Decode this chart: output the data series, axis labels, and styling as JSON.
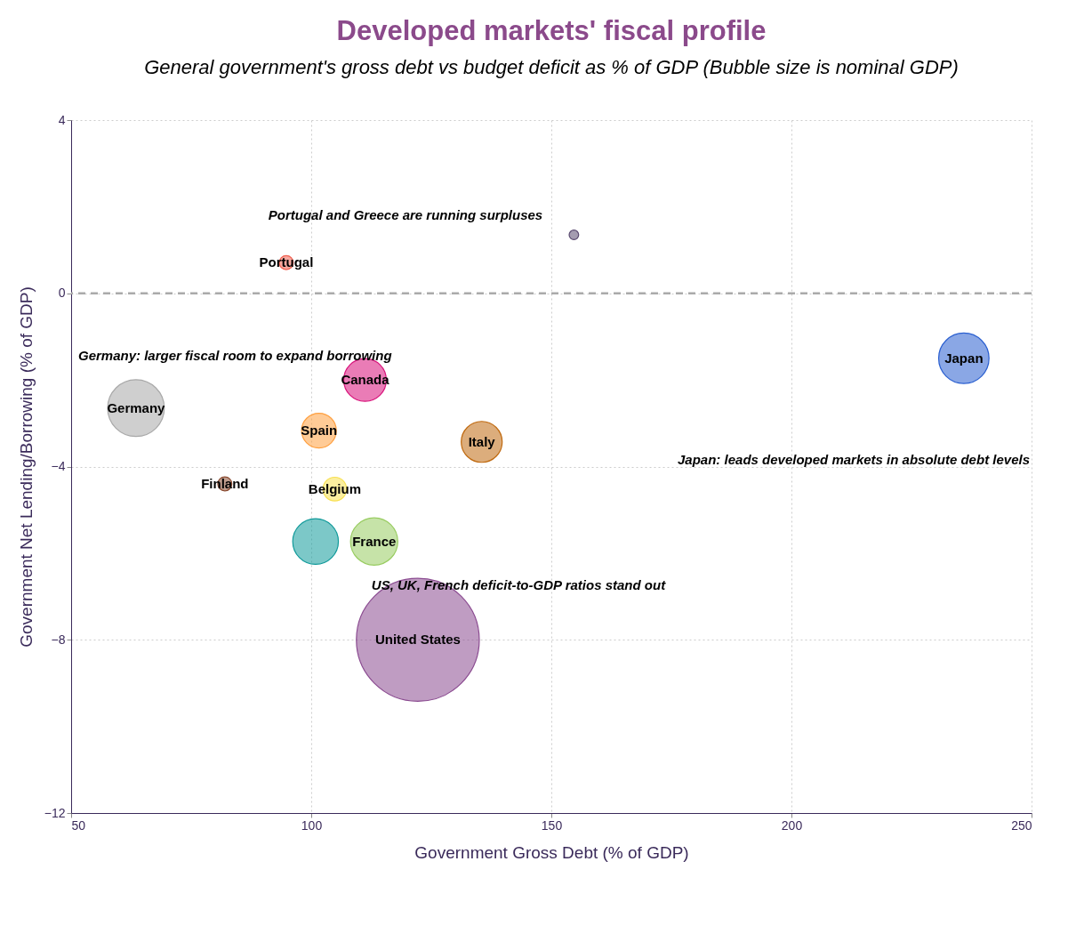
{
  "chart_data": {
    "type": "bubble",
    "title": "Developed markets' fiscal profile",
    "subtitle": "General government's gross debt vs budget deficit as % of GDP (Bubble size is nominal GDP)",
    "xlabel": "Government Gross Debt (% of GDP)",
    "ylabel": "Government Net Lending/Borrowing (% of GDP)",
    "xlim": [
      50,
      250
    ],
    "xticks": [
      50,
      100,
      150,
      200,
      250
    ],
    "ylim": [
      -12,
      4
    ],
    "yticks": [
      -12,
      -8,
      -4,
      0,
      4
    ],
    "grid": true,
    "legend": false,
    "series": [
      {
        "x": [
          154.7
        ],
        "values": [
          1.35
        ],
        "sizes": [
          0.006
        ],
        "color": "#5a4a70"
      },
      {
        "name": "Portugal",
        "x": [
          94.8
        ],
        "values": [
          0.71
        ],
        "sizes": [
          0.013
        ],
        "color": "#f06050"
      },
      {
        "name": "Japan",
        "x": [
          235.9
        ],
        "values": [
          -1.5
        ],
        "sizes": [
          0.168
        ],
        "color": "#2a5fd0"
      },
      {
        "name": "Canada",
        "x": [
          111.2
        ],
        "values": [
          -2.0
        ],
        "sizes": [
          0.12
        ],
        "color": "#d8107a"
      },
      {
        "name": "Germany",
        "x": [
          63.5
        ],
        "values": [
          -2.65
        ],
        "sizes": [
          0.213
        ],
        "color": "#a8a8a8"
      },
      {
        "name": "Spain",
        "x": [
          101.6
        ],
        "values": [
          -3.17
        ],
        "sizes": [
          0.08
        ],
        "color": "#ffa040"
      },
      {
        "name": "Italy",
        "x": [
          135.5
        ],
        "values": [
          -3.43
        ],
        "sizes": [
          0.111
        ],
        "color": "#c06a10"
      },
      {
        "name": "Finland",
        "x": [
          82.0
        ],
        "values": [
          -4.4
        ],
        "sizes": [
          0.013
        ],
        "color": "#8a4a30"
      },
      {
        "name": "Belgium",
        "x": [
          104.9
        ],
        "values": [
          -4.52
        ],
        "sizes": [
          0.037
        ],
        "color": "#f8e050"
      },
      {
        "x": [
          100.9
        ],
        "values": [
          -5.73
        ],
        "sizes": [
          0.138
        ],
        "color": "#109a9a"
      },
      {
        "name": "France",
        "x": [
          113.1
        ],
        "values": [
          -5.73
        ],
        "sizes": [
          0.148
        ],
        "color": "#98cc60"
      },
      {
        "name": "United States",
        "x": [
          122.2
        ],
        "values": [
          -8.0
        ],
        "sizes": [
          1
        ],
        "color": "#8a4a90"
      }
    ],
    "ref_lines": [
      {
        "axis": "y",
        "value": 0,
        "line_style": "dashed",
        "color": "#aaaaaa"
      }
    ],
    "annotations": [
      "Portugal and Greece are running surpluses",
      "Germany: larger fiscal room to expand borrowing",
      "Japan: leads developed markets in absolute debt levels",
      "US, UK, French deficit-to-GDP ratios stand out"
    ]
  }
}
